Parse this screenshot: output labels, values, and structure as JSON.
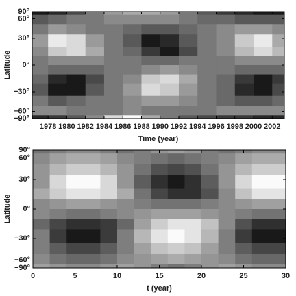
{
  "chart_data": [
    {
      "type": "heatmap",
      "xlabel": "Time (year)",
      "ylabel": "Latitude",
      "yscale": "sine",
      "xlim": [
        1976.3,
        2003.3
      ],
      "ylim": [
        -90,
        90
      ],
      "xticks": [
        1978,
        1980,
        1982,
        1984,
        1986,
        1988,
        1990,
        1992,
        1994,
        1996,
        1998,
        2000,
        2002
      ],
      "yticks": [
        {
          "value": 90,
          "label": "90°"
        },
        {
          "value": 60,
          "label": "60°"
        },
        {
          "value": 30,
          "label": "30°"
        },
        {
          "value": 0,
          "label": "0°"
        },
        {
          "value": -30,
          "label": "−30°"
        },
        {
          "value": -60,
          "label": "−60°"
        },
        {
          "value": -90,
          "label": "−90°"
        }
      ],
      "colormap": "gray",
      "xbins": [
        1976,
        1978,
        1980,
        1982,
        1984,
        1986,
        1988,
        1990,
        1992,
        1994,
        1996,
        1998,
        2000,
        2002,
        2004
      ],
      "ybins": [
        90,
        70,
        50,
        35,
        20,
        10,
        0,
        -10,
        -20,
        -35,
        -50,
        -70,
        -90
      ],
      "z": [
        [
          -0.6,
          -0.5,
          -0.3,
          0,
          0.2,
          0.3,
          0.3,
          0.2,
          0,
          -0.2,
          -0.4,
          -0.5,
          -0.6,
          -0.6
        ],
        [
          -0.2,
          -0.1,
          0,
          0,
          0.1,
          0.1,
          0.1,
          0.1,
          0,
          -0.1,
          -0.1,
          -0.2,
          -0.2,
          -0.2
        ],
        [
          0,
          0.2,
          0.1,
          0,
          0,
          -0.1,
          -0.2,
          -0.2,
          -0.1,
          0,
          0.1,
          0.2,
          0.2,
          0.1
        ],
        [
          0.2,
          0.7,
          0.6,
          0.2,
          0,
          -0.2,
          -0.6,
          -0.5,
          -0.2,
          0,
          0.1,
          0.5,
          0.7,
          0.3
        ],
        [
          0.1,
          0.5,
          0.6,
          0.3,
          0,
          -0.1,
          -0.4,
          -0.6,
          -0.3,
          0,
          0.1,
          0.4,
          0.6,
          0.4
        ],
        [
          0,
          0.1,
          0.1,
          0.1,
          0,
          0,
          -0.1,
          -0.1,
          0,
          0,
          0,
          0.1,
          0.1,
          0.1
        ],
        [
          0,
          -0.1,
          -0.1,
          -0.1,
          0,
          0,
          0.1,
          0.2,
          0.1,
          0,
          0,
          -0.1,
          -0.1,
          -0.1
        ],
        [
          -0.1,
          -0.5,
          -0.6,
          -0.3,
          0,
          0.1,
          0.5,
          0.6,
          0.3,
          0,
          -0.1,
          -0.4,
          -0.6,
          -0.4
        ],
        [
          -0.2,
          -0.6,
          -0.6,
          -0.2,
          0,
          0.2,
          0.6,
          0.5,
          0.2,
          0,
          -0.1,
          -0.5,
          -0.6,
          -0.3
        ],
        [
          0,
          -0.2,
          -0.1,
          0,
          0,
          0.1,
          0.2,
          0.2,
          0.1,
          0,
          -0.1,
          -0.2,
          -0.2,
          -0.1
        ],
        [
          0.1,
          0.1,
          0,
          0,
          0,
          0.1,
          0,
          0,
          0,
          0,
          0.1,
          0.1,
          0.1,
          0.1
        ],
        [
          -0.5,
          -0.4,
          -0.2,
          0.1,
          0.6,
          0.8,
          0.3,
          0,
          -0.2,
          -0.3,
          -0.4,
          -0.4,
          -0.5,
          -0.5
        ]
      ]
    },
    {
      "type": "heatmap",
      "xlabel": "t (year)",
      "ylabel": "Latitude",
      "yscale": "sine",
      "xlim": [
        0,
        30
      ],
      "ylim": [
        -90,
        90
      ],
      "xticks": [
        0,
        5,
        10,
        15,
        20,
        25,
        30
      ],
      "yticks": [
        {
          "value": 90,
          "label": "90°"
        },
        {
          "value": 60,
          "label": "60°"
        },
        {
          "value": 30,
          "label": "30°"
        },
        {
          "value": 0,
          "label": "0°"
        },
        {
          "value": -30,
          "label": "−30°"
        },
        {
          "value": -60,
          "label": "−60°"
        },
        {
          "value": -90,
          "label": "−90°"
        }
      ],
      "colormap": "gray",
      "xbins": [
        0,
        2,
        4,
        6,
        8,
        10,
        12,
        14,
        16,
        18,
        20,
        22,
        24,
        26,
        28,
        30
      ],
      "ybins": [
        90,
        70,
        50,
        35,
        20,
        10,
        0,
        -10,
        -20,
        -35,
        -50,
        -70,
        -90
      ],
      "z": [
        [
          -0.2,
          -0.1,
          0,
          0,
          -0.1,
          -0.2,
          -0.1,
          0.1,
          0.2,
          0.1,
          -0.1,
          -0.2,
          -0.1,
          0,
          0
        ],
        [
          0,
          0.2,
          0.3,
          0.3,
          0.2,
          0,
          -0.1,
          -0.2,
          -0.3,
          -0.2,
          -0.1,
          0,
          0.2,
          0.3,
          0.3
        ],
        [
          0.1,
          0.4,
          0.6,
          0.6,
          0.4,
          0.1,
          -0.2,
          -0.5,
          -0.6,
          -0.5,
          -0.2,
          0.1,
          0.4,
          0.6,
          0.6
        ],
        [
          0.1,
          0.7,
          1,
          1,
          0.7,
          0.1,
          -0.4,
          -0.8,
          -1,
          -0.8,
          -0.4,
          0.1,
          0.7,
          1,
          1
        ],
        [
          0.3,
          0.6,
          0.8,
          0.8,
          0.7,
          0.3,
          -0.2,
          -0.6,
          -0.8,
          -0.8,
          -0.5,
          0,
          0.5,
          0.8,
          0.8
        ],
        [
          0,
          0.1,
          0.2,
          0.2,
          0.1,
          0,
          -0.1,
          -0.2,
          -0.2,
          -0.2,
          -0.1,
          0,
          0.1,
          0.2,
          0.2
        ],
        [
          0,
          -0.1,
          -0.2,
          -0.2,
          -0.1,
          0,
          0.1,
          0.2,
          0.2,
          0.2,
          0.1,
          0,
          -0.1,
          -0.2,
          -0.2
        ],
        [
          -0.3,
          -0.6,
          -0.8,
          -0.8,
          -0.7,
          -0.3,
          0.2,
          0.6,
          0.8,
          0.8,
          0.5,
          0,
          -0.5,
          -0.8,
          -0.8
        ],
        [
          -0.1,
          -0.7,
          -1,
          -1,
          -0.7,
          -0.1,
          0.4,
          0.8,
          1,
          0.8,
          0.4,
          -0.1,
          -0.7,
          -1,
          -1
        ],
        [
          -0.1,
          -0.4,
          -0.6,
          -0.6,
          -0.4,
          -0.1,
          0.2,
          0.5,
          0.6,
          0.5,
          0.2,
          -0.1,
          -0.4,
          -0.6,
          -0.6
        ],
        [
          0,
          -0.2,
          -0.3,
          -0.3,
          -0.2,
          0,
          0.1,
          0.2,
          0.3,
          0.2,
          0.1,
          0,
          -0.2,
          -0.3,
          -0.3
        ],
        [
          0.2,
          0.1,
          0,
          0,
          0.1,
          0.2,
          0.1,
          -0.1,
          -0.2,
          -0.1,
          0.1,
          0.2,
          0.1,
          0,
          0
        ]
      ]
    }
  ]
}
